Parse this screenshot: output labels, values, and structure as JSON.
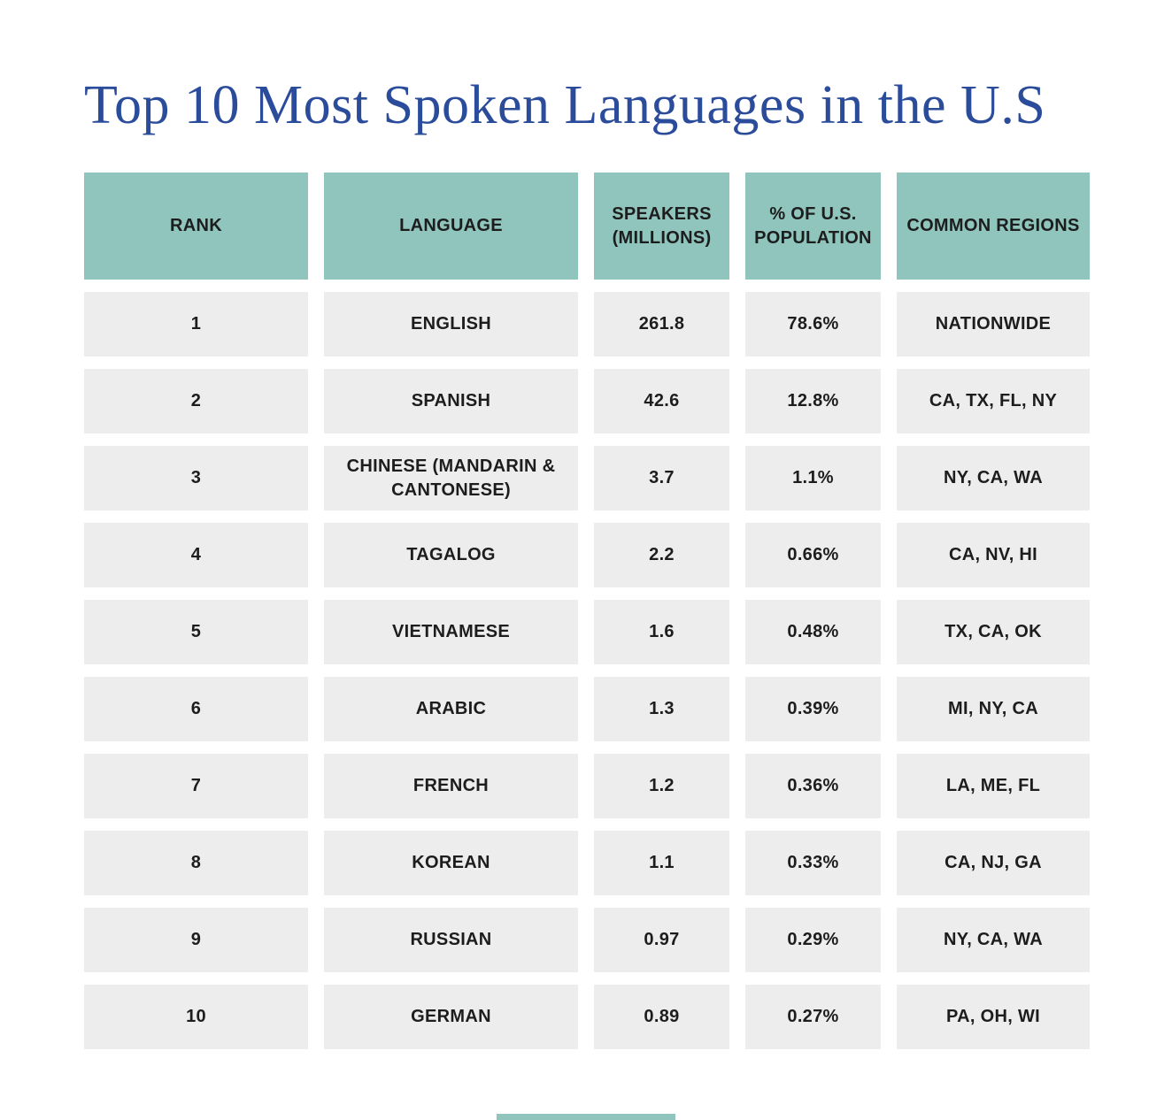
{
  "colors": {
    "header_bg": "#8fc5bc",
    "row_bg": "#ededed",
    "title": "#2b4c9b",
    "text": "#1d1d1d"
  },
  "chart_data": {
    "type": "table",
    "title": "Top 10 Most Spoken Languages in the U.S",
    "columns": [
      "RANK",
      "LANGUAGE",
      "SPEAKERS (MILLIONS)",
      "% OF U.S. POPULATION",
      "COMMON REGIONS"
    ],
    "rows": [
      [
        "1",
        "ENGLISH",
        "261.8",
        "78.6%",
        "NATIONWIDE"
      ],
      [
        "2",
        "SPANISH",
        "42.6",
        "12.8%",
        "CA, TX, FL, NY"
      ],
      [
        "3",
        "CHINESE (MANDARIN & CANTONESE)",
        "3.7",
        "1.1%",
        "NY, CA, WA"
      ],
      [
        "4",
        "TAGALOG",
        "2.2",
        "0.66%",
        "CA, NV, HI"
      ],
      [
        "5",
        "VIETNAMESE",
        "1.6",
        "0.48%",
        "TX, CA, OK"
      ],
      [
        "6",
        "ARABIC",
        "1.3",
        "0.39%",
        "MI, NY, CA"
      ],
      [
        "7",
        "FRENCH",
        "1.2",
        "0.36%",
        "LA, ME, FL"
      ],
      [
        "8",
        "KOREAN",
        "1.1",
        "0.33%",
        "CA, NJ, GA"
      ],
      [
        "9",
        "RUSSIAN",
        "0.97",
        "0.29%",
        "NY, CA, WA"
      ],
      [
        "10",
        "GERMAN",
        "0.89",
        "0.27%",
        "PA, OH, WI"
      ]
    ]
  }
}
